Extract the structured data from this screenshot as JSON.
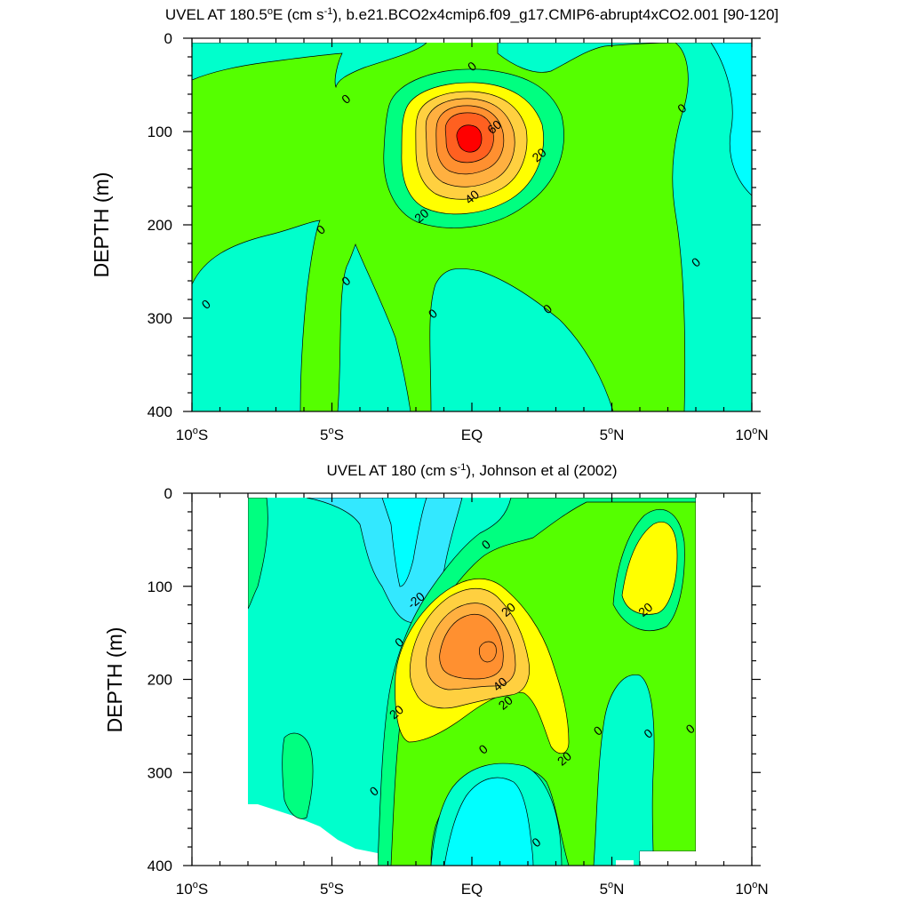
{
  "colors": {
    "band_m20": "#33e8ff",
    "band_m10": "#00ffff",
    "band_0": "#00ffcc",
    "band_10": "#00ff80",
    "band_20a": "#55ff00",
    "band_20": "#ffff00",
    "band_30": "#ffd040",
    "band_40": "#ffb040",
    "band_50": "#ff9030",
    "band_60": "#ff6020",
    "band_70": "#ff0000"
  },
  "chart_data": [
    {
      "type": "contour",
      "title": "UVEL AT 180.5°E (cm s-1), b.e21.BCO2x4cmip6.f09_g17.CMIP6-abrupt4xCO2.001 [90-120]",
      "title_main": "UVEL AT 180.5",
      "title_deg": "o",
      "title_mid": "E (cm s",
      "title_sup": "-1",
      "title_tail": "), b.e21.BCO2x4cmip6.f09_g17.CMIP6-abrupt4xCO2.001 [90-120]",
      "ylabel": "DEPTH (m)",
      "xlim": [
        -10,
        10
      ],
      "ylim": [
        400,
        0
      ],
      "xticks": [
        {
          "value": -10,
          "num": "10",
          "deg": "o",
          "hemi": "S"
        },
        {
          "value": -5,
          "num": "5",
          "deg": "o",
          "hemi": "S"
        },
        {
          "value": 0,
          "num": "EQ",
          "deg": "",
          "hemi": ""
        },
        {
          "value": 5,
          "num": "5",
          "deg": "o",
          "hemi": "N"
        },
        {
          "value": 10,
          "num": "10",
          "deg": "o",
          "hemi": "N"
        }
      ],
      "yticks": [
        0,
        100,
        200,
        300,
        400
      ],
      "contour_interval": 10,
      "jet_core": {
        "lat": 0,
        "depth": 110,
        "max_approx": 70
      },
      "contour_labels": [
        {
          "text": "0",
          "lat": 0,
          "depth": 30
        },
        {
          "text": "0",
          "lat": -4.5,
          "depth": 65
        },
        {
          "text": "60",
          "lat": 0.8,
          "depth": 95
        },
        {
          "text": "20",
          "lat": 2.4,
          "depth": 125
        },
        {
          "text": "40",
          "lat": 0,
          "depth": 170
        },
        {
          "text": "20",
          "lat": -1.8,
          "depth": 190
        },
        {
          "text": "0",
          "lat": -5.4,
          "depth": 205
        },
        {
          "text": "0",
          "lat": -4.5,
          "depth": 260
        },
        {
          "text": "0",
          "lat": -9.5,
          "depth": 285
        },
        {
          "text": "0",
          "lat": -1.4,
          "depth": 295
        },
        {
          "text": "0",
          "lat": 2.7,
          "depth": 290
        },
        {
          "text": "0",
          "lat": 7.5,
          "depth": 75
        },
        {
          "text": "0",
          "lat": 8,
          "depth": 240
        }
      ]
    },
    {
      "type": "contour",
      "title": "UVEL AT 180 (cm s-1), Johnson et al (2002)",
      "title_main": "UVEL AT 180 (cm s",
      "title_deg": "",
      "title_mid": "",
      "title_sup": "-1",
      "title_tail": "), Johnson et al (2002)",
      "ylabel": "DEPTH (m)",
      "xlim": [
        -10,
        10
      ],
      "ylim": [
        400,
        0
      ],
      "xticks": [
        {
          "value": -10,
          "num": "10",
          "deg": "o",
          "hemi": "S"
        },
        {
          "value": -5,
          "num": "5",
          "deg": "o",
          "hemi": "S"
        },
        {
          "value": 0,
          "num": "EQ",
          "deg": "",
          "hemi": ""
        },
        {
          "value": 5,
          "num": "5",
          "deg": "o",
          "hemi": "N"
        },
        {
          "value": 10,
          "num": "10",
          "deg": "o",
          "hemi": "N"
        }
      ],
      "yticks": [
        0,
        100,
        200,
        300,
        400
      ],
      "contour_interval": 10,
      "jet_core": {
        "lat": 0.5,
        "depth": 170,
        "max_approx": 50
      },
      "contour_labels": [
        {
          "text": "0",
          "lat": 0.5,
          "depth": 55
        },
        {
          "text": "-20",
          "lat": -2,
          "depth": 115
        },
        {
          "text": "20",
          "lat": 1.3,
          "depth": 125
        },
        {
          "text": "0",
          "lat": -2.6,
          "depth": 160
        },
        {
          "text": "40",
          "lat": 1,
          "depth": 205
        },
        {
          "text": "20",
          "lat": 1.2,
          "depth": 225
        },
        {
          "text": "20",
          "lat": -2.7,
          "depth": 235
        },
        {
          "text": "20",
          "lat": 6.2,
          "depth": 125
        },
        {
          "text": "20",
          "lat": 3.3,
          "depth": 285
        },
        {
          "text": "0",
          "lat": 4.5,
          "depth": 255
        },
        {
          "text": "0",
          "lat": 6.3,
          "depth": 258
        },
        {
          "text": "0",
          "lat": 7.8,
          "depth": 253
        },
        {
          "text": "0",
          "lat": 0.4,
          "depth": 275
        },
        {
          "text": "0",
          "lat": -3.5,
          "depth": 320
        },
        {
          "text": "0",
          "lat": 2.3,
          "depth": 375
        }
      ]
    }
  ]
}
